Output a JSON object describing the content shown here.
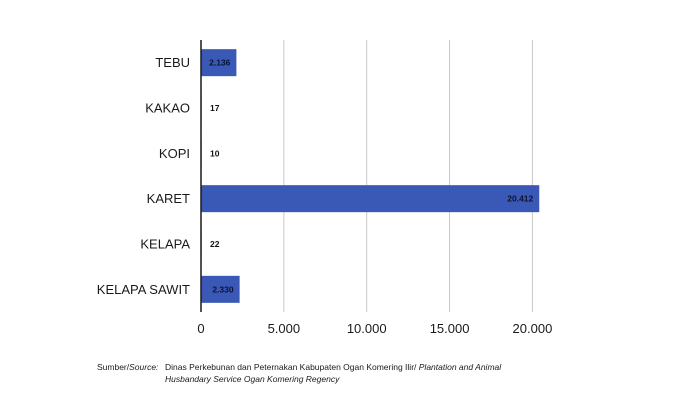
{
  "chart_data": {
    "type": "bar",
    "orientation": "horizontal",
    "categories": [
      "TEBU",
      "KAKAO",
      "KOPI",
      "KARET",
      "KELAPA",
      "KELAPA SAWIT"
    ],
    "values": [
      2136,
      17,
      10,
      20412,
      22,
      2330
    ],
    "value_labels": [
      "2.136",
      "17",
      "10",
      "20.412",
      "22",
      "2.330"
    ],
    "x_ticks": [
      0,
      5000,
      10000,
      15000,
      20000
    ],
    "x_tick_labels": [
      "0",
      "5.000",
      "10.000",
      "15.000",
      "20.000"
    ],
    "xlim": [
      0,
      24500
    ],
    "grid": "vertical",
    "bar_color": "#3a58b5",
    "title": "",
    "xlabel": "",
    "ylabel": ""
  },
  "source": {
    "label": "Sumber/Source:",
    "label_id": "Sumber/",
    "label_en": "Source:",
    "text_id": "Dinas Perkebunan dan Peternakan Kabupaten Ogan Komering Ilir/",
    "text_en": "Plantation and Animal Husbandary Service  Ogan Komering Regency"
  }
}
